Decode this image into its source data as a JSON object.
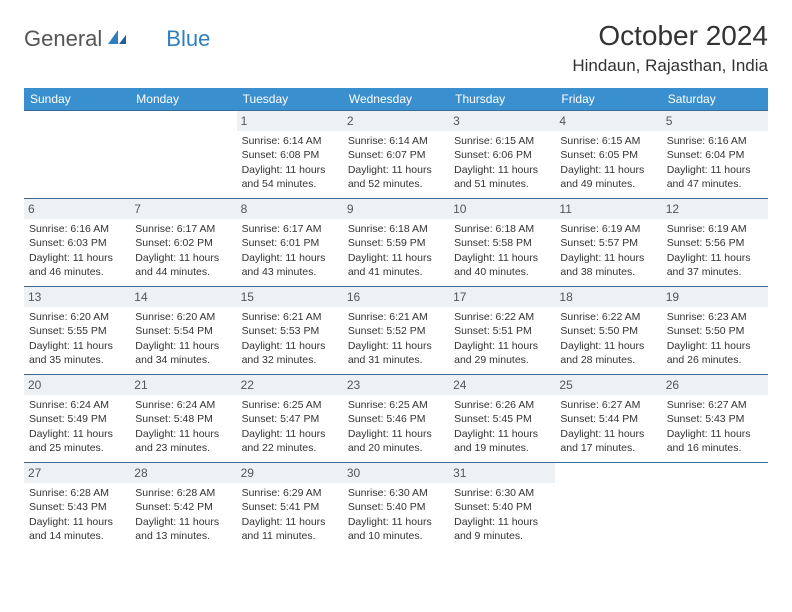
{
  "logo": {
    "part1": "General",
    "part2": "Blue"
  },
  "title": "October 2024",
  "location": "Hindaun, Rajasthan, India",
  "colors": {
    "header_bg": "#3a8fcf",
    "header_text": "#ffffff",
    "border": "#3a6b95",
    "daynum_bg": "#eef1f3",
    "logo_accent": "#2f7fbf"
  },
  "weekdays": [
    "Sunday",
    "Monday",
    "Tuesday",
    "Wednesday",
    "Thursday",
    "Friday",
    "Saturday"
  ],
  "weeks": [
    [
      {
        "day": "",
        "lines": []
      },
      {
        "day": "",
        "lines": []
      },
      {
        "day": "1",
        "lines": [
          "Sunrise: 6:14 AM",
          "Sunset: 6:08 PM",
          "Daylight: 11 hours",
          "and 54 minutes."
        ]
      },
      {
        "day": "2",
        "lines": [
          "Sunrise: 6:14 AM",
          "Sunset: 6:07 PM",
          "Daylight: 11 hours",
          "and 52 minutes."
        ]
      },
      {
        "day": "3",
        "lines": [
          "Sunrise: 6:15 AM",
          "Sunset: 6:06 PM",
          "Daylight: 11 hours",
          "and 51 minutes."
        ]
      },
      {
        "day": "4",
        "lines": [
          "Sunrise: 6:15 AM",
          "Sunset: 6:05 PM",
          "Daylight: 11 hours",
          "and 49 minutes."
        ]
      },
      {
        "day": "5",
        "lines": [
          "Sunrise: 6:16 AM",
          "Sunset: 6:04 PM",
          "Daylight: 11 hours",
          "and 47 minutes."
        ]
      }
    ],
    [
      {
        "day": "6",
        "lines": [
          "Sunrise: 6:16 AM",
          "Sunset: 6:03 PM",
          "Daylight: 11 hours",
          "and 46 minutes."
        ]
      },
      {
        "day": "7",
        "lines": [
          "Sunrise: 6:17 AM",
          "Sunset: 6:02 PM",
          "Daylight: 11 hours",
          "and 44 minutes."
        ]
      },
      {
        "day": "8",
        "lines": [
          "Sunrise: 6:17 AM",
          "Sunset: 6:01 PM",
          "Daylight: 11 hours",
          "and 43 minutes."
        ]
      },
      {
        "day": "9",
        "lines": [
          "Sunrise: 6:18 AM",
          "Sunset: 5:59 PM",
          "Daylight: 11 hours",
          "and 41 minutes."
        ]
      },
      {
        "day": "10",
        "lines": [
          "Sunrise: 6:18 AM",
          "Sunset: 5:58 PM",
          "Daylight: 11 hours",
          "and 40 minutes."
        ]
      },
      {
        "day": "11",
        "lines": [
          "Sunrise: 6:19 AM",
          "Sunset: 5:57 PM",
          "Daylight: 11 hours",
          "and 38 minutes."
        ]
      },
      {
        "day": "12",
        "lines": [
          "Sunrise: 6:19 AM",
          "Sunset: 5:56 PM",
          "Daylight: 11 hours",
          "and 37 minutes."
        ]
      }
    ],
    [
      {
        "day": "13",
        "lines": [
          "Sunrise: 6:20 AM",
          "Sunset: 5:55 PM",
          "Daylight: 11 hours",
          "and 35 minutes."
        ]
      },
      {
        "day": "14",
        "lines": [
          "Sunrise: 6:20 AM",
          "Sunset: 5:54 PM",
          "Daylight: 11 hours",
          "and 34 minutes."
        ]
      },
      {
        "day": "15",
        "lines": [
          "Sunrise: 6:21 AM",
          "Sunset: 5:53 PM",
          "Daylight: 11 hours",
          "and 32 minutes."
        ]
      },
      {
        "day": "16",
        "lines": [
          "Sunrise: 6:21 AM",
          "Sunset: 5:52 PM",
          "Daylight: 11 hours",
          "and 31 minutes."
        ]
      },
      {
        "day": "17",
        "lines": [
          "Sunrise: 6:22 AM",
          "Sunset: 5:51 PM",
          "Daylight: 11 hours",
          "and 29 minutes."
        ]
      },
      {
        "day": "18",
        "lines": [
          "Sunrise: 6:22 AM",
          "Sunset: 5:50 PM",
          "Daylight: 11 hours",
          "and 28 minutes."
        ]
      },
      {
        "day": "19",
        "lines": [
          "Sunrise: 6:23 AM",
          "Sunset: 5:50 PM",
          "Daylight: 11 hours",
          "and 26 minutes."
        ]
      }
    ],
    [
      {
        "day": "20",
        "lines": [
          "Sunrise: 6:24 AM",
          "Sunset: 5:49 PM",
          "Daylight: 11 hours",
          "and 25 minutes."
        ]
      },
      {
        "day": "21",
        "lines": [
          "Sunrise: 6:24 AM",
          "Sunset: 5:48 PM",
          "Daylight: 11 hours",
          "and 23 minutes."
        ]
      },
      {
        "day": "22",
        "lines": [
          "Sunrise: 6:25 AM",
          "Sunset: 5:47 PM",
          "Daylight: 11 hours",
          "and 22 minutes."
        ]
      },
      {
        "day": "23",
        "lines": [
          "Sunrise: 6:25 AM",
          "Sunset: 5:46 PM",
          "Daylight: 11 hours",
          "and 20 minutes."
        ]
      },
      {
        "day": "24",
        "lines": [
          "Sunrise: 6:26 AM",
          "Sunset: 5:45 PM",
          "Daylight: 11 hours",
          "and 19 minutes."
        ]
      },
      {
        "day": "25",
        "lines": [
          "Sunrise: 6:27 AM",
          "Sunset: 5:44 PM",
          "Daylight: 11 hours",
          "and 17 minutes."
        ]
      },
      {
        "day": "26",
        "lines": [
          "Sunrise: 6:27 AM",
          "Sunset: 5:43 PM",
          "Daylight: 11 hours",
          "and 16 minutes."
        ]
      }
    ],
    [
      {
        "day": "27",
        "lines": [
          "Sunrise: 6:28 AM",
          "Sunset: 5:43 PM",
          "Daylight: 11 hours",
          "and 14 minutes."
        ]
      },
      {
        "day": "28",
        "lines": [
          "Sunrise: 6:28 AM",
          "Sunset: 5:42 PM",
          "Daylight: 11 hours",
          "and 13 minutes."
        ]
      },
      {
        "day": "29",
        "lines": [
          "Sunrise: 6:29 AM",
          "Sunset: 5:41 PM",
          "Daylight: 11 hours",
          "and 11 minutes."
        ]
      },
      {
        "day": "30",
        "lines": [
          "Sunrise: 6:30 AM",
          "Sunset: 5:40 PM",
          "Daylight: 11 hours",
          "and 10 minutes."
        ]
      },
      {
        "day": "31",
        "lines": [
          "Sunrise: 6:30 AM",
          "Sunset: 5:40 PM",
          "Daylight: 11 hours",
          "and 9 minutes."
        ]
      },
      {
        "day": "",
        "lines": []
      },
      {
        "day": "",
        "lines": []
      }
    ]
  ]
}
